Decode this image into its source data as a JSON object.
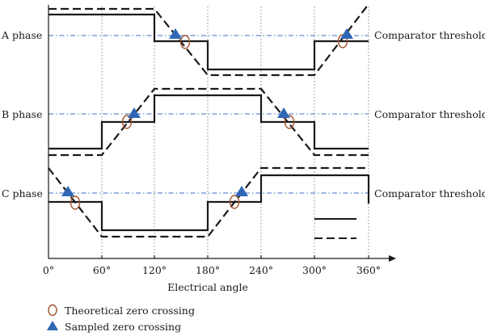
{
  "phases": {
    "a": "A phase",
    "b": "B phase",
    "c": "C phase"
  },
  "threshold_label": "Comparator threshold",
  "x_axis": {
    "label": "Electrical angle",
    "ticks": [
      "0°",
      "60°",
      "120°",
      "180°",
      "240°",
      "300°",
      "360°"
    ]
  },
  "legend": {
    "theoretical": "Theoretical zero crossing",
    "sampled": "Sampled zero crossing"
  },
  "colors": {
    "threshold_line": "#3a6fc4",
    "theoretical_marker": "#a0522d",
    "sampled_marker": "#2f66b5",
    "grid": "#8a8a8a"
  }
}
